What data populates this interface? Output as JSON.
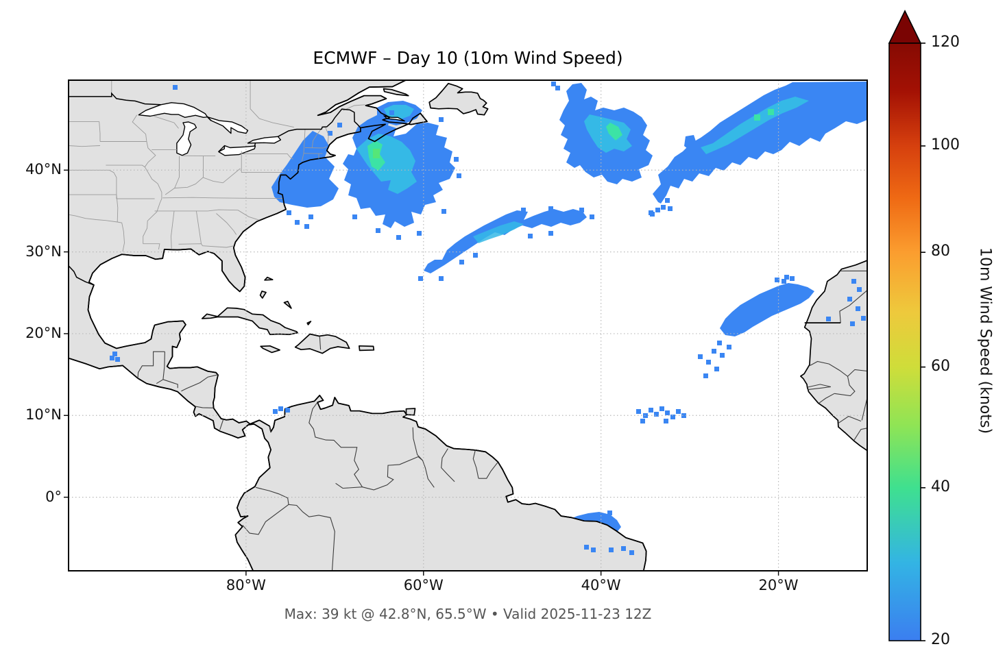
{
  "figure": {
    "title": "ECMWF – Day 10 (10m Wind Speed)",
    "subtitle": "Max: 39 kt @ 42.8°N, 65.5°W • Valid 2025-11-23 12Z"
  },
  "axes": {
    "x_ticks": [
      {
        "label": "80°W",
        "lon": -80
      },
      {
        "label": "60°W",
        "lon": -60
      },
      {
        "label": "40°W",
        "lon": -40
      },
      {
        "label": "20°W",
        "lon": -20
      }
    ],
    "y_ticks": [
      {
        "label": "40°N",
        "lat": 40
      },
      {
        "label": "30°N",
        "lat": 30
      },
      {
        "label": "20°N",
        "lat": 20
      },
      {
        "label": "10°N",
        "lat": 10
      },
      {
        "label": "0°",
        "lat": 0
      }
    ]
  },
  "colorbar": {
    "label": "10m Wind Speed (knots)",
    "ticks": [
      {
        "value": "120"
      },
      {
        "value": "100"
      },
      {
        "value": "80"
      },
      {
        "value": "60"
      },
      {
        "value": "40"
      },
      {
        "value": "20"
      }
    ],
    "min_kt": 20,
    "max_kt": 120,
    "extend": "max",
    "stop_colors": {
      "20": "#3b7ef0",
      "40": "#3fe08f",
      "60": "#cfdd3a",
      "80": "#fb9d2f",
      "100": "#d6400e",
      "120": "#8c0b04"
    },
    "arrow_color": "#7a0403"
  },
  "map_style": {
    "land_color": "#e1e1e1",
    "ocean_color": "#ffffff",
    "coast_color": "#000000",
    "country_border_color": "#3c3c3c",
    "state_border_color": "#9a9a9a",
    "grid_color": "#b8b8b8",
    "wind_low": "#3a86f3",
    "wind_mid": "#35b9e6",
    "wind_high": "#3ce3a5",
    "wind_peak": "#55e678"
  },
  "chart_data": {
    "type": "heatmap",
    "subtype": "geographic wind-speed shading (pcolormesh-style) over Atlantic basin",
    "title": "ECMWF – Day 10 (10m Wind Speed)",
    "model": "ECMWF",
    "lead_time": "Day 10",
    "variable": "10m Wind Speed",
    "units": "knots",
    "valid": "2025-11-23 12Z",
    "projection": "PlateCarree (equirectangular)",
    "lon_range": [
      -100,
      -10
    ],
    "lat_range": [
      -9,
      51
    ],
    "shading_threshold_kt": 20,
    "colorbar": {
      "min": 20,
      "max": 120,
      "tick_values": [
        20,
        40,
        60,
        80,
        100,
        120
      ],
      "extend": "max",
      "position": "right"
    },
    "grid": {
      "on": true,
      "style": "dotted",
      "lons": [
        -80,
        -60,
        -40,
        -20
      ],
      "lats": [
        0,
        10,
        20,
        30,
        40
      ]
    },
    "max_point": {
      "value_kt": 39,
      "lat": 42.8,
      "lon": -65.5
    },
    "features": [
      {
        "region": "Western Atlantic off New England / Novaia Scotia",
        "approx_center": {
          "lat": 41.5,
          "lon": -64.5
        },
        "peak_kt": 39,
        "note": "largest patch, teal-green core"
      },
      {
        "region": "Gulf of St. Lawrence",
        "approx_center": {
          "lat": 47.0,
          "lon": -62.0
        },
        "est_peak_kt": 32
      },
      {
        "region": "Central North Atlantic blob",
        "approx_center": {
          "lat": 44.0,
          "lon": -39.0
        },
        "est_peak_kt": 34
      },
      {
        "region": "Northeast Atlantic band toward 10W/50N",
        "approx_center": {
          "lat": 44.0,
          "lon": -20.0
        },
        "est_peak_kt": 33
      },
      {
        "region": "Subtropical central Atlantic",
        "approx_center": {
          "lat": 31.0,
          "lon": -51.0
        },
        "est_peak_kt": 28
      },
      {
        "region": "Off Western Sahara / Canary region",
        "approx_center": {
          "lat": 23.0,
          "lon": -21.0
        },
        "est_peak_kt": 25
      },
      {
        "region": "ITCZ scatter",
        "approx_center": {
          "lat": 10.5,
          "lon": -33.0
        },
        "est_peak_kt": 22
      },
      {
        "region": "Equatorial patch off NE Brazil",
        "approx_center": {
          "lat": -3.5,
          "lon": -40.0
        },
        "est_peak_kt": 25
      },
      {
        "region": "Gulf of Tehuantepec gap wind",
        "approx_center": {
          "lat": 16.5,
          "lon": -94.7
        },
        "est_peak_kt": 22
      },
      {
        "region": "Caribbean off Colombia",
        "approx_center": {
          "lat": 11.0,
          "lon": -76.0
        },
        "est_peak_kt": 21
      }
    ]
  }
}
